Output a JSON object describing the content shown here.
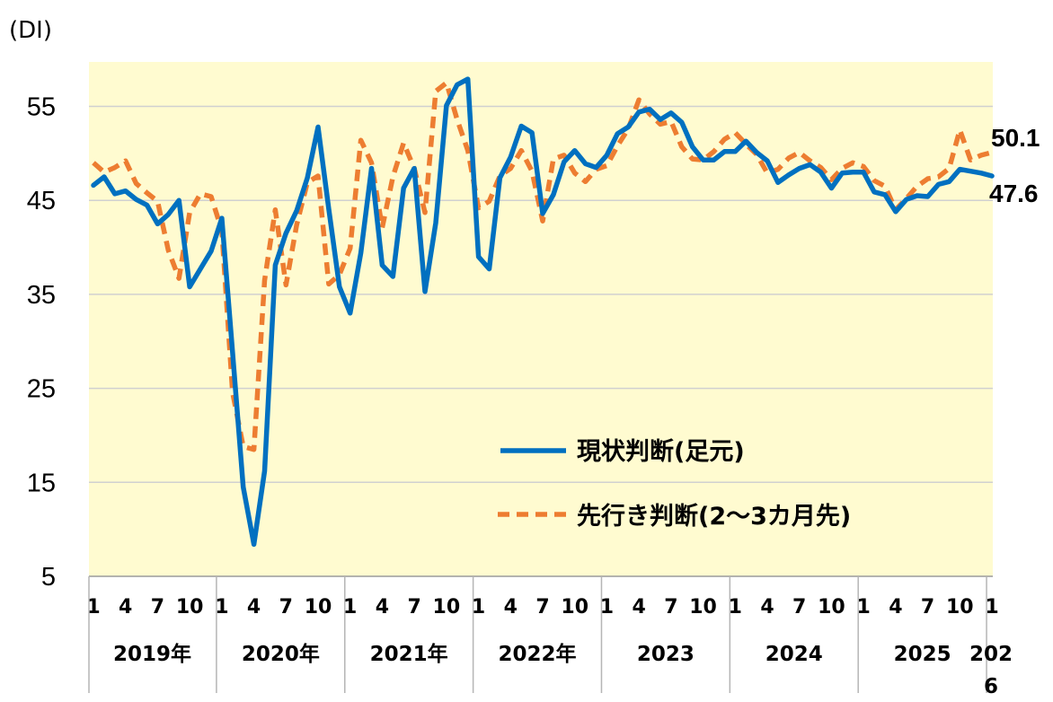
{
  "chart_data": {
    "type": "line",
    "ylabel": "(DI)",
    "ylim": [
      5,
      60
    ],
    "yticks": [
      5,
      15,
      25,
      35,
      45,
      55
    ],
    "grid": true,
    "legend_position": "lower-right",
    "background_color": "#FFFBD0",
    "x_month_labels": [
      "1",
      "4",
      "7",
      "10",
      "1",
      "4",
      "7",
      "10",
      "1",
      "4",
      "7",
      "10",
      "1",
      "4",
      "7",
      "10",
      "1",
      "4",
      "7",
      "10",
      "1",
      "4",
      "7",
      "10",
      "1",
      "4",
      "7",
      "10",
      "1"
    ],
    "year_labels": [
      "2019年",
      "2020年",
      "2021年",
      "2022年",
      "2023",
      "2024",
      "2025",
      "202\n6"
    ],
    "x": [
      "2019-01",
      "2019-02",
      "2019-03",
      "2019-04",
      "2019-05",
      "2019-06",
      "2019-07",
      "2019-08",
      "2019-09",
      "2019-10",
      "2019-11",
      "2019-12",
      "2020-01",
      "2020-02",
      "2020-03",
      "2020-04",
      "2020-05",
      "2020-06",
      "2020-07",
      "2020-08",
      "2020-09",
      "2020-10",
      "2020-11",
      "2020-12",
      "2021-01",
      "2021-02",
      "2021-03",
      "2021-04",
      "2021-05",
      "2021-06",
      "2021-07",
      "2021-08",
      "2021-09",
      "2021-10",
      "2021-11",
      "2021-12",
      "2022-01",
      "2022-02",
      "2022-03",
      "2022-04",
      "2022-05",
      "2022-06",
      "2022-07",
      "2022-08",
      "2022-09",
      "2022-10",
      "2022-11",
      "2022-12",
      "2023-01",
      "2023-02",
      "2023-03",
      "2023-04",
      "2023-05",
      "2023-06",
      "2023-07",
      "2023-08",
      "2023-09",
      "2023-10",
      "2023-11",
      "2023-12",
      "2024-01",
      "2024-02",
      "2024-03",
      "2024-04",
      "2024-05",
      "2024-06",
      "2024-07",
      "2024-08",
      "2024-09",
      "2024-10",
      "2024-11",
      "2024-12",
      "2025-01",
      "2025-02",
      "2025-03",
      "2025-04",
      "2025-05",
      "2025-06",
      "2025-07",
      "2025-08",
      "2025-09",
      "2025-10",
      "2025-11",
      "2025-12",
      "2026-01"
    ],
    "series": [
      {
        "name": "現状判断(足元)",
        "color": "#0070C0",
        "style": "solid",
        "end_label": "47.6",
        "values": [
          46.6,
          47.5,
          45.7,
          46.0,
          45.1,
          44.5,
          42.5,
          43.5,
          45.0,
          35.8,
          37.7,
          39.6,
          43.1,
          28.9,
          14.5,
          8.4,
          16.2,
          38.1,
          41.5,
          43.9,
          47.4,
          52.8,
          44.1,
          35.8,
          33.0,
          39.4,
          48.4,
          38.1,
          36.9,
          46.3,
          48.4,
          35.3,
          42.6,
          55.1,
          57.3,
          57.9,
          39.0,
          37.7,
          47.4,
          49.6,
          52.9,
          52.2,
          43.6,
          45.6,
          49.1,
          50.3,
          48.9,
          48.5,
          49.8,
          52.1,
          52.8,
          54.4,
          54.7,
          53.6,
          54.3,
          53.3,
          50.7,
          49.3,
          49.3,
          50.2,
          50.2,
          51.3,
          50.1,
          49.2,
          46.9,
          47.7,
          48.4,
          48.8,
          48.0,
          46.3,
          47.9,
          48.0,
          48.0,
          45.9,
          45.6,
          43.8,
          45.1,
          45.5,
          45.4,
          46.7,
          47.0,
          48.3,
          48.1,
          47.9,
          47.6
        ]
      },
      {
        "name": "先行き判断(2～3カ月先)",
        "color": "#ED7D31",
        "style": "dashed",
        "end_label": "50.1",
        "values": [
          49.0,
          48.0,
          48.5,
          49.2,
          46.8,
          45.8,
          44.9,
          39.7,
          36.7,
          43.7,
          45.7,
          45.4,
          41.8,
          24.6,
          18.8,
          18.5,
          36.5,
          44.0,
          36.0,
          42.4,
          46.9,
          47.6,
          36.1,
          37.1,
          39.9,
          51.4,
          49.0,
          42.1,
          47.5,
          51.1,
          48.4,
          43.7,
          56.6,
          57.5,
          53.6,
          50.3,
          44.2,
          44.9,
          47.6,
          48.4,
          50.3,
          48.1,
          42.8,
          49.4,
          49.8,
          47.9,
          47.0,
          48.3,
          48.7,
          50.8,
          52.6,
          55.7,
          54.2,
          53.1,
          53.4,
          50.7,
          49.4,
          49.3,
          50.2,
          51.5,
          52.2,
          51.0,
          49.9,
          47.9,
          48.3,
          49.5,
          50.1,
          49.2,
          48.5,
          47.2,
          48.4,
          49.0,
          48.6,
          47.1,
          46.5,
          44.0,
          45.2,
          46.5,
          47.3,
          47.5,
          48.4,
          52.5,
          49.3,
          49.8,
          50.1
        ]
      }
    ]
  }
}
